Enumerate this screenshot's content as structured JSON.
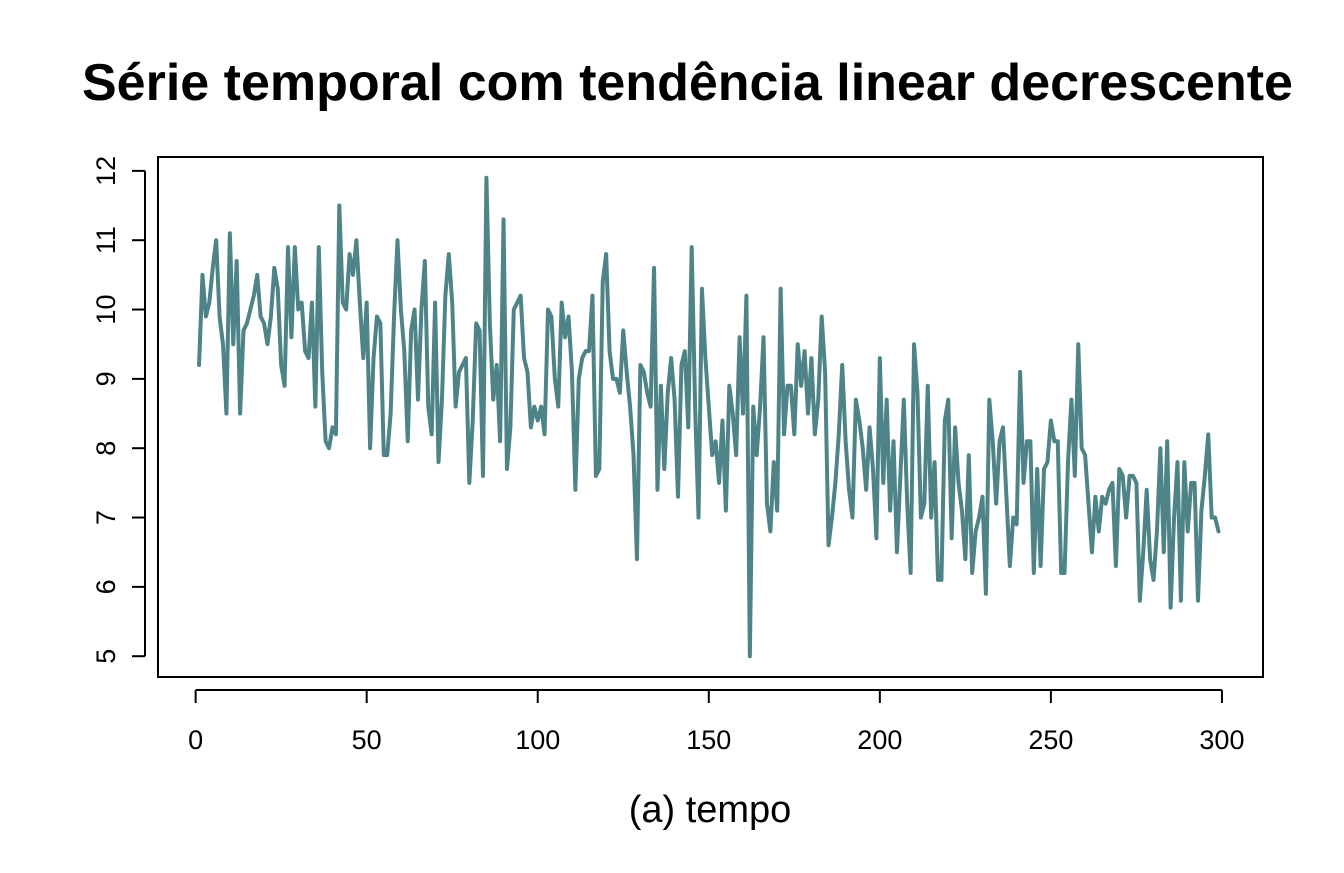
{
  "chart_data": {
    "type": "line",
    "title": "Série temporal com tendência linear decrescente",
    "xlabel": "(a) tempo",
    "ylabel": "",
    "xlim": [
      -11,
      312
    ],
    "ylim": [
      4.7,
      12.2
    ],
    "x_ticks": [
      0,
      50,
      100,
      150,
      200,
      250,
      300
    ],
    "y_ticks": [
      5,
      6,
      7,
      8,
      9,
      10,
      11,
      12
    ],
    "grid": false,
    "legend": "none",
    "line_color": "#4e8487",
    "series": [
      {
        "x_start": 1,
        "x_step": 1,
        "values": [
          9.2,
          10.5,
          9.9,
          10.1,
          10.6,
          11.0,
          9.9,
          9.5,
          8.5,
          11.1,
          9.5,
          10.7,
          8.5,
          9.7,
          9.8,
          10.0,
          10.2,
          10.5,
          9.9,
          9.8,
          9.5,
          9.9,
          10.6,
          10.3,
          9.2,
          8.9,
          10.9,
          9.6,
          10.9,
          10.0,
          10.1,
          9.4,
          9.3,
          10.1,
          8.6,
          10.9,
          9.1,
          8.1,
          8.0,
          8.3,
          8.2,
          11.5,
          10.1,
          10.0,
          10.8,
          10.5,
          11.0,
          10.1,
          9.3,
          10.1,
          8.0,
          9.3,
          9.9,
          9.8,
          7.9,
          7.9,
          8.5,
          9.9,
          11.0,
          10.0,
          9.4,
          8.1,
          9.7,
          10.0,
          8.7,
          10.0,
          10.7,
          8.6,
          8.2,
          10.1,
          7.8,
          8.7,
          10.2,
          10.8,
          10.1,
          8.6,
          9.1,
          9.2,
          9.3,
          7.5,
          8.4,
          9.8,
          9.7,
          7.6,
          11.9,
          9.8,
          8.7,
          9.2,
          8.1,
          11.3,
          7.7,
          8.3,
          10.0,
          10.1,
          10.2,
          9.3,
          9.1,
          8.3,
          8.6,
          8.4,
          8.6,
          8.2,
          10.0,
          9.9,
          9.0,
          8.6,
          10.1,
          9.6,
          9.9,
          9.1,
          7.4,
          9.0,
          9.3,
          9.4,
          9.4,
          10.2,
          7.6,
          7.7,
          10.4,
          10.8,
          9.4,
          9.0,
          9.0,
          8.8,
          9.7,
          9.1,
          8.6,
          7.9,
          6.4,
          9.2,
          9.1,
          8.8,
          8.6,
          10.6,
          7.4,
          8.9,
          7.7,
          8.8,
          9.3,
          8.7,
          7.3,
          9.2,
          9.4,
          8.3,
          10.9,
          8.6,
          7.0,
          10.3,
          9.3,
          8.6,
          7.9,
          8.1,
          7.5,
          8.4,
          7.1,
          8.9,
          8.5,
          7.9,
          9.6,
          8.5,
          10.2,
          5.0,
          8.6,
          7.9,
          8.6,
          9.6,
          7.2,
          6.8,
          7.8,
          7.1,
          10.3,
          8.2,
          8.9,
          8.9,
          8.2,
          9.5,
          8.9,
          9.4,
          8.5,
          9.3,
          8.2,
          8.7,
          9.9,
          9.1,
          6.6,
          7.0,
          7.5,
          8.2,
          9.2,
          8.1,
          7.4,
          7.0,
          8.7,
          8.4,
          8.0,
          7.4,
          8.3,
          7.7,
          6.7,
          9.3,
          7.5,
          8.7,
          7.1,
          8.1,
          6.5,
          7.6,
          8.7,
          7.2,
          6.2,
          9.5,
          8.8,
          7.0,
          7.2,
          8.9,
          7.0,
          7.8,
          6.1,
          6.1,
          8.4,
          8.7,
          6.7,
          8.3,
          7.5,
          7.1,
          6.4,
          7.9,
          6.2,
          6.8,
          7.0,
          7.3,
          5.9,
          8.7,
          8.1,
          7.2,
          8.1,
          8.3,
          7.3,
          6.3,
          7.0,
          6.9,
          9.1,
          7.5,
          8.1,
          8.1,
          6.2,
          7.7,
          6.3,
          7.7,
          7.8,
          8.4,
          8.1,
          8.1,
          6.2,
          6.2,
          7.8,
          8.7,
          7.6,
          9.5,
          8.0,
          7.9,
          7.2,
          6.5,
          7.3,
          6.8,
          7.3,
          7.2,
          7.4,
          7.5,
          6.3,
          7.7,
          7.6,
          7.0,
          7.6,
          7.6,
          7.5,
          5.8,
          6.5,
          7.4,
          6.4,
          6.1,
          6.8,
          8.0,
          6.5,
          8.1,
          5.7,
          7.0,
          7.8,
          5.8,
          7.8,
          6.8,
          7.5,
          7.5,
          5.8,
          7.1,
          7.6,
          8.2,
          7.0,
          7.0,
          6.8
        ]
      }
    ]
  }
}
